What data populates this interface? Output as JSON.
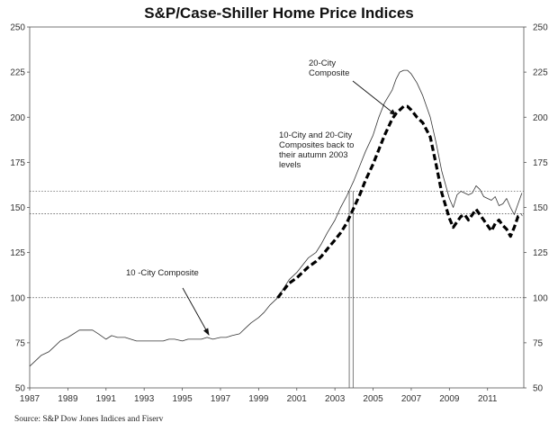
{
  "chart_data": {
    "type": "line",
    "title": "S&P/Case-Shiller Home Price Indices",
    "xlabel": "",
    "ylabel": "",
    "xlim": [
      1987,
      2012.9
    ],
    "ylim": [
      50,
      250
    ],
    "x_ticks": [
      "1987",
      "1989",
      "1991",
      "1993",
      "1995",
      "1997",
      "1999",
      "2001",
      "2003",
      "2005",
      "2007",
      "2009",
      "2011"
    ],
    "y_ticks": [
      "50",
      "75",
      "100",
      "125",
      "150",
      "175",
      "200",
      "225",
      "250"
    ],
    "y_ticks_right": [
      "50",
      "75",
      "100",
      "125",
      "150",
      "175",
      "200",
      "225",
      "250"
    ],
    "reference_lines": [
      {
        "axis": "y",
        "value": 100,
        "style": "dotted"
      },
      {
        "axis": "y",
        "value": 146.5,
        "style": "dotted"
      },
      {
        "axis": "y",
        "value": 159,
        "style": "dotted"
      },
      {
        "axis": "x",
        "value": 2003.75,
        "style": "solid"
      },
      {
        "axis": "x",
        "value": 2003.95,
        "style": "solid"
      }
    ],
    "series": [
      {
        "name": "10-City Composite",
        "style": "thin-solid",
        "x": [
          1987.0,
          1987.3,
          1987.6,
          1988.0,
          1988.3,
          1988.6,
          1989.0,
          1989.3,
          1989.6,
          1990.0,
          1990.3,
          1990.6,
          1991.0,
          1991.3,
          1991.6,
          1992.0,
          1992.3,
          1992.6,
          1993.0,
          1993.3,
          1993.6,
          1994.0,
          1994.3,
          1994.6,
          1995.0,
          1995.3,
          1995.6,
          1996.0,
          1996.3,
          1996.6,
          1997.0,
          1997.3,
          1997.6,
          1998.0,
          1998.3,
          1998.6,
          1999.0,
          1999.3,
          1999.6,
          2000.0,
          2000.3,
          2000.6,
          2001.0,
          2001.3,
          2001.6,
          2002.0,
          2002.3,
          2002.6,
          2003.0,
          2003.3,
          2003.6,
          2004.0,
          2004.3,
          2004.6,
          2005.0,
          2005.3,
          2005.6,
          2006.0,
          2006.2,
          2006.4,
          2006.6,
          2006.8,
          2007.0,
          2007.3,
          2007.6,
          2008.0,
          2008.3,
          2008.6,
          2009.0,
          2009.2,
          2009.4,
          2009.6,
          2009.8,
          2010.0,
          2010.2,
          2010.4,
          2010.6,
          2010.8,
          2011.0,
          2011.2,
          2011.4,
          2011.6,
          2011.8,
          2012.0,
          2012.2,
          2012.4,
          2012.6,
          2012.8
        ],
        "values": [
          62,
          65,
          68,
          70,
          73,
          76,
          78,
          80,
          82,
          82,
          82,
          80,
          77,
          79,
          78,
          78,
          77,
          76,
          76,
          76,
          76,
          76,
          77,
          77,
          76,
          77,
          77,
          77,
          78,
          77,
          78,
          78,
          79,
          80,
          83,
          86,
          89,
          92,
          96,
          100,
          105,
          110,
          114,
          118,
          122,
          125,
          130,
          136,
          143,
          150,
          156,
          165,
          173,
          181,
          190,
          200,
          208,
          215,
          221,
          225,
          226,
          226,
          224,
          219,
          212,
          200,
          186,
          170,
          155,
          150,
          157,
          159,
          158,
          157,
          158,
          162,
          160,
          156,
          155,
          154,
          156,
          151,
          152,
          155,
          150,
          146,
          152,
          158
        ]
      },
      {
        "name": "20-City Composite",
        "style": "thick-dashed",
        "x": [
          2000.0,
          2000.3,
          2000.6,
          2001.0,
          2001.3,
          2001.6,
          2002.0,
          2002.3,
          2002.6,
          2003.0,
          2003.3,
          2003.6,
          2004.0,
          2004.3,
          2004.6,
          2005.0,
          2005.3,
          2005.6,
          2006.0,
          2006.2,
          2006.4,
          2006.6,
          2006.8,
          2007.0,
          2007.3,
          2007.6,
          2008.0,
          2008.3,
          2008.6,
          2009.0,
          2009.2,
          2009.4,
          2009.6,
          2009.8,
          2010.0,
          2010.2,
          2010.4,
          2010.6,
          2010.8,
          2011.0,
          2011.2,
          2011.4,
          2011.6,
          2011.8,
          2012.0,
          2012.2,
          2012.4,
          2012.6,
          2012.8
        ],
        "values": [
          100,
          104,
          108,
          111,
          114,
          117,
          120,
          123,
          127,
          132,
          136,
          141,
          150,
          157,
          165,
          174,
          182,
          190,
          199,
          202,
          204,
          206,
          206,
          204,
          200,
          197,
          189,
          174,
          158,
          144,
          139,
          142,
          145,
          146,
          143,
          146,
          149,
          146,
          143,
          140,
          137,
          141,
          143,
          140,
          138,
          134,
          139,
          145,
          146
        ]
      }
    ],
    "annotations": [
      {
        "lines": [
          "20-City",
          "Composite"
        ]
      },
      {
        "lines": [
          "10-City and 20-City",
          "Composites back to",
          "their autumn 2003",
          "levels"
        ]
      },
      {
        "lines": [
          "10 -City Composite"
        ]
      }
    ],
    "source": "Source: S&P Dow Jones Indices and Fiserv"
  }
}
